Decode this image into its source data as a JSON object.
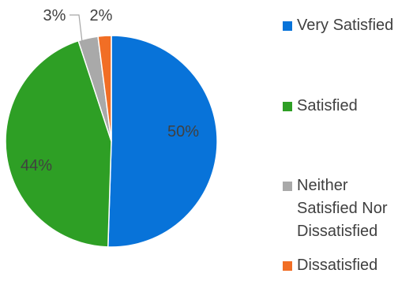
{
  "chart_data": {
    "type": "pie",
    "title": "",
    "slices": [
      {
        "label": "Very Satisfied",
        "value": 50,
        "display": "50%",
        "color": "#0873D9"
      },
      {
        "label": "Satisfied",
        "value": 44,
        "display": "44%",
        "color": "#2E9F25"
      },
      {
        "label": "Neither Satisfied Nor Dissatisfied",
        "value": 3,
        "display": "3%",
        "color": "#A9A9A9"
      },
      {
        "label": "Dissatisfied",
        "value": 2,
        "display": "2%",
        "color": "#F16E25"
      }
    ],
    "start_angle": "12 o'clock",
    "direction": "clockwise",
    "legend_position": "right"
  }
}
